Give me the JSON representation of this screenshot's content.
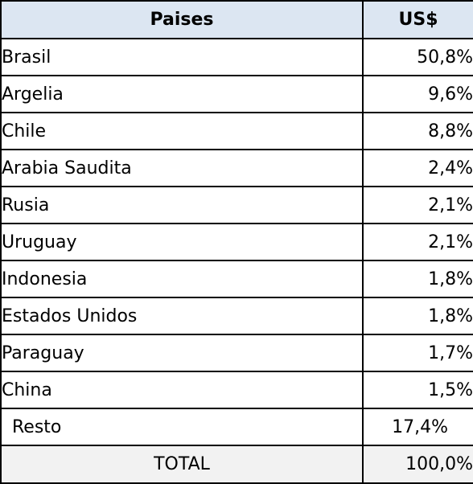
{
  "header": {
    "country_col": "Paises",
    "value_col": "US$"
  },
  "rows": [
    {
      "country": "Brasil",
      "value": "50,8%"
    },
    {
      "country": "Argelia",
      "value": "9,6%"
    },
    {
      "country": "Chile",
      "value": "8,8%"
    },
    {
      "country": "Arabia Saudita",
      "value": "2,4%"
    },
    {
      "country": "Rusia",
      "value": "2,1%"
    },
    {
      "country": "Uruguay",
      "value": "2,1%"
    },
    {
      "country": "Indonesia",
      "value": "1,8%"
    },
    {
      "country": "Estados Unidos",
      "value": "1,8%"
    },
    {
      "country": "Paraguay",
      "value": "1,7%"
    },
    {
      "country": "China",
      "value": "1,5%"
    },
    {
      "country": "Resto",
      "value": "17,4%"
    }
  ],
  "total": {
    "label": "TOTAL",
    "value": "100,0%"
  },
  "colors": {
    "header_bg": "#dce6f2",
    "total_bg": "#f2f2f2",
    "border": "#000000"
  }
}
